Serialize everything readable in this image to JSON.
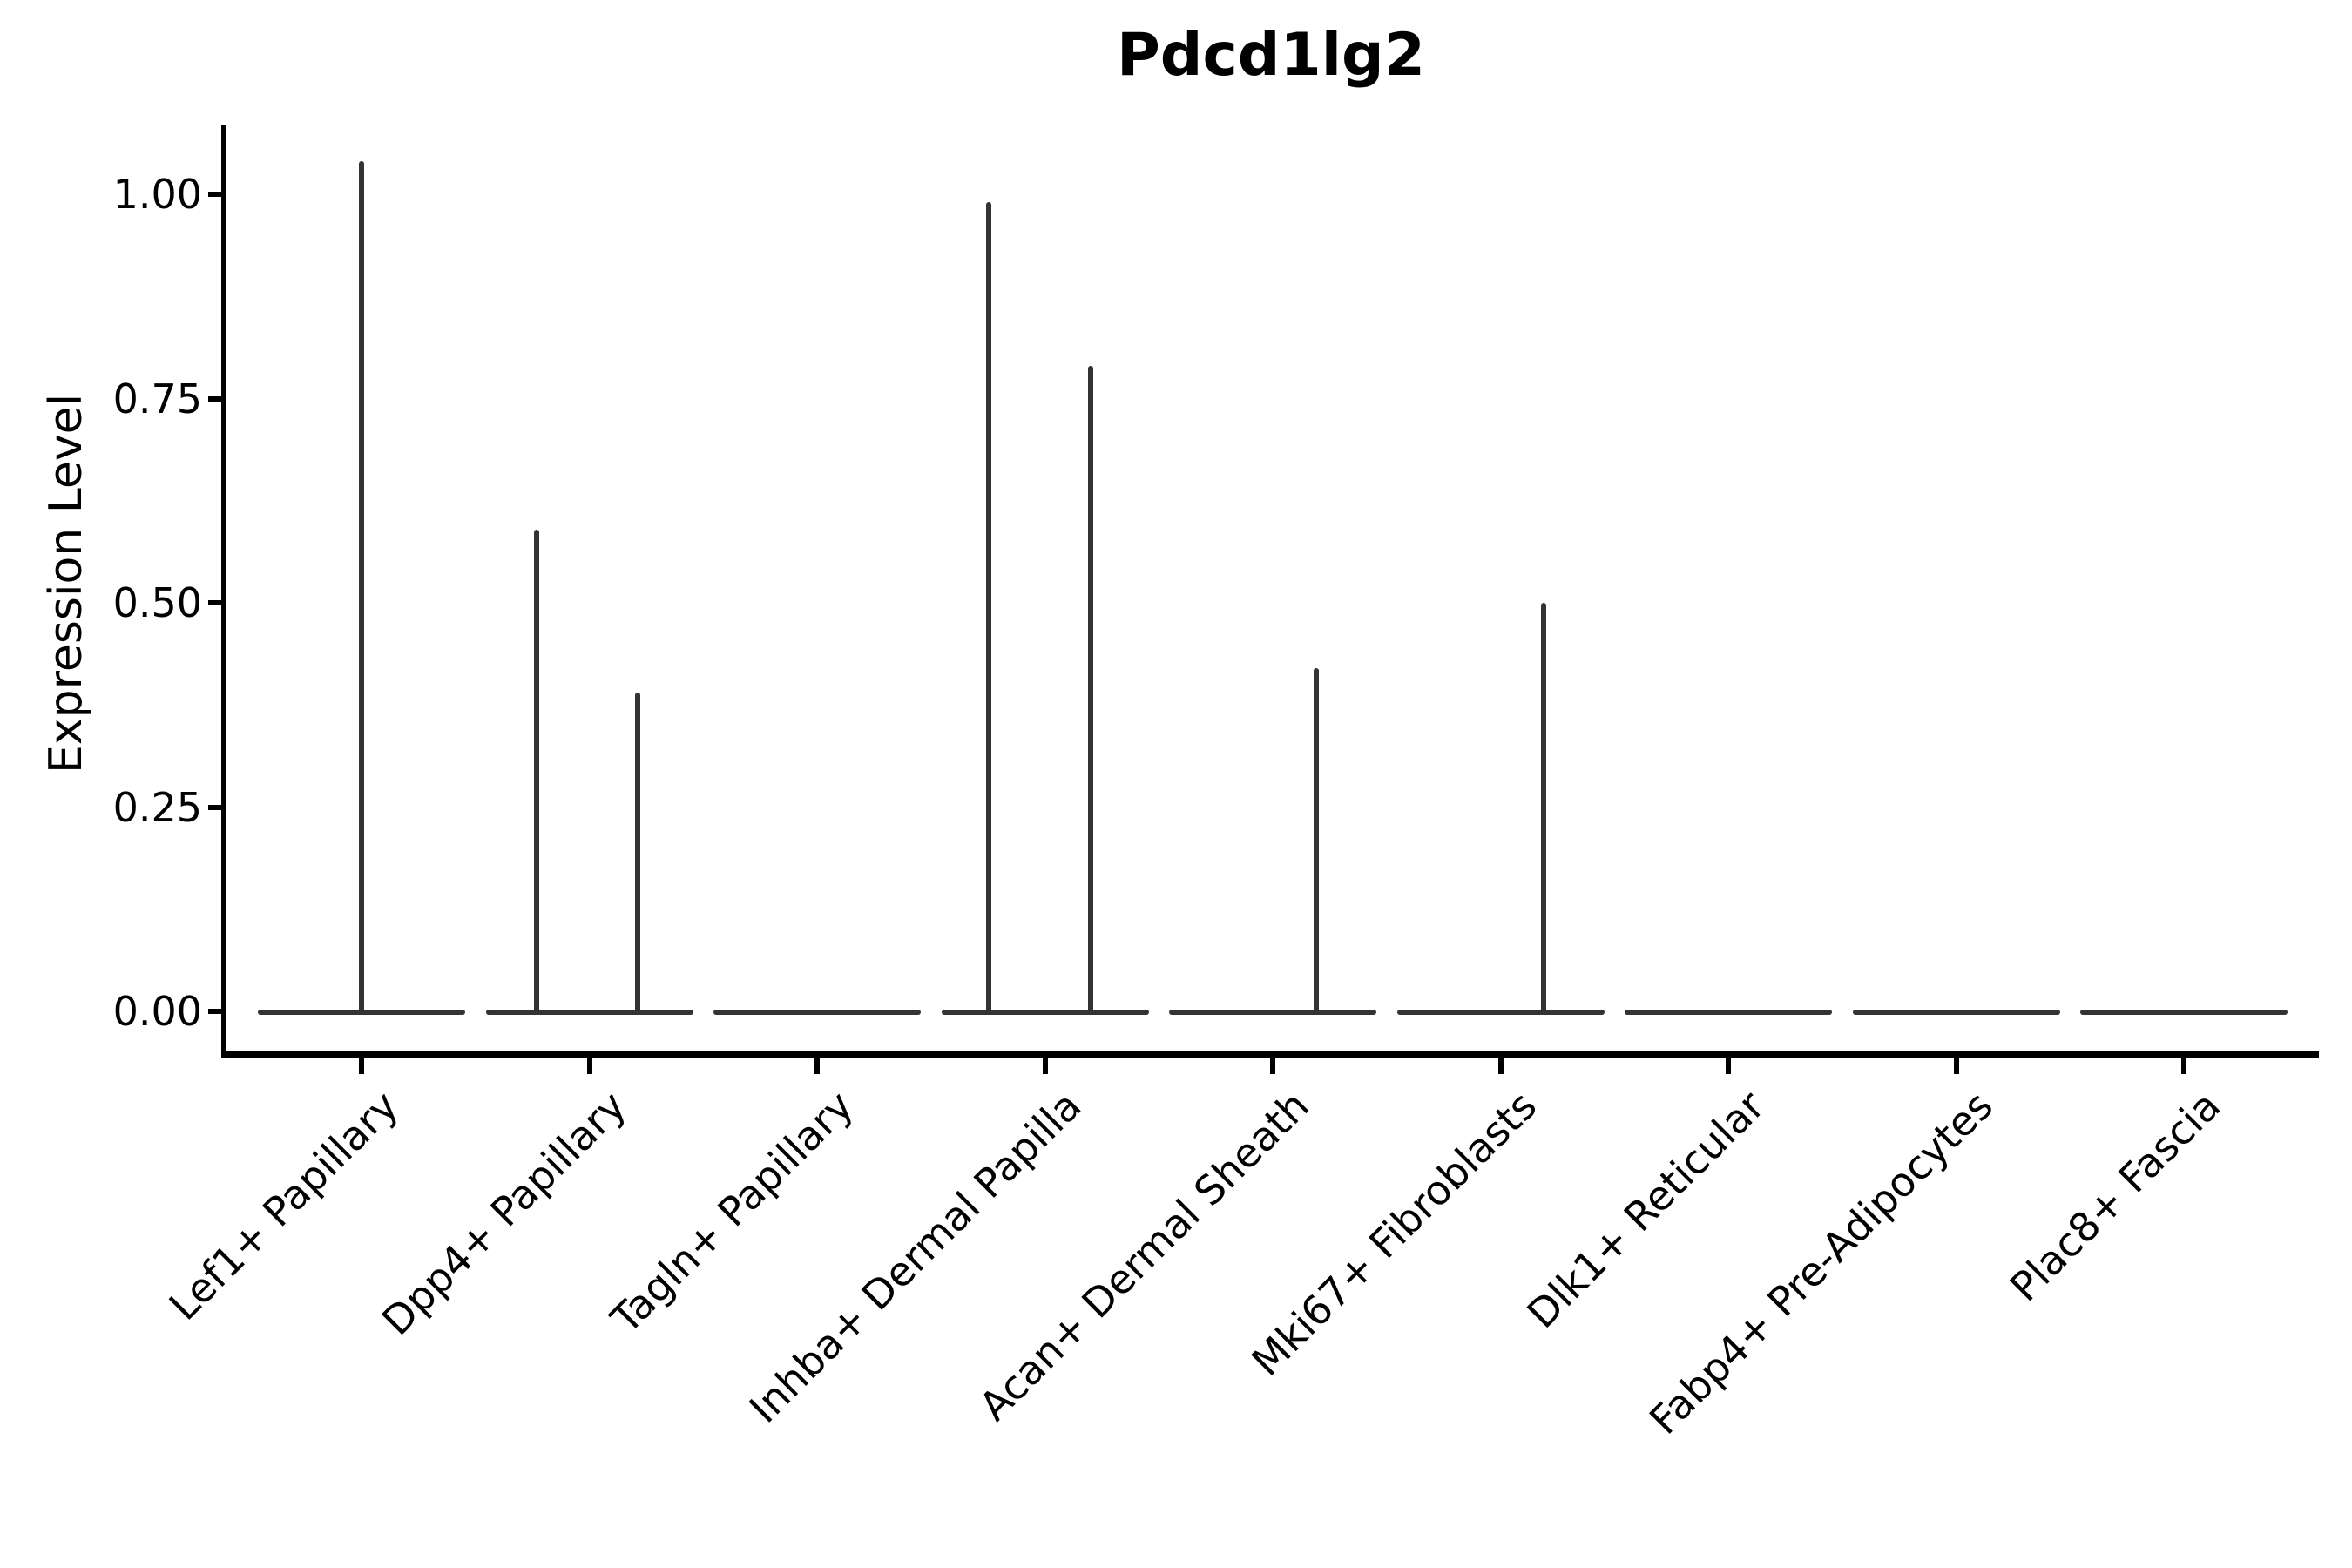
{
  "title": "Pdcd1lg2",
  "chart_data": {
    "type": "violin",
    "title": "Pdcd1lg2",
    "xlabel": "",
    "ylabel": "Expression Level",
    "legend": "none",
    "grid": false,
    "y_ticks": [
      0.0,
      0.25,
      0.5,
      0.75,
      1.0
    ],
    "y_tick_labels": [
      "0.00",
      "0.25",
      "0.50",
      "0.75",
      "1.00"
    ],
    "ylim": [
      -0.05,
      1.1
    ],
    "categories": [
      "Lef1+ Papillary",
      "Dpp4+ Papillary",
      "Tagln+ Papillary",
      "Inhba+ Dermal Papilla",
      "Acan+ Dermal Sheath",
      "Mki67+ Fibroblasts",
      "Dlk1+ Reticular",
      "Fabp4+ Pre-Adipocytes",
      "Plac8+ Fascia"
    ],
    "violins": [
      {
        "category": "Lef1+ Papillary",
        "baseline_value": 0,
        "spikes": [
          {
            "value": 1.04,
            "offset": 0.0
          }
        ]
      },
      {
        "category": "Dpp4+ Papillary",
        "baseline_value": 0,
        "spikes": [
          {
            "value": 0.59,
            "offset": -0.231
          },
          {
            "value": 0.39,
            "offset": 0.212
          }
        ]
      },
      {
        "category": "Tagln+ Papillary",
        "baseline_value": 0,
        "spikes": []
      },
      {
        "category": "Inhba+ Dermal Papilla",
        "baseline_value": 0,
        "spikes": [
          {
            "value": 0.99,
            "offset": -0.247
          },
          {
            "value": 0.79,
            "offset": 0.201
          }
        ]
      },
      {
        "category": "Acan+ Dermal Sheath",
        "baseline_value": 0,
        "spikes": [
          {
            "value": 0.42,
            "offset": 0.191
          }
        ]
      },
      {
        "category": "Mki67+ Fibroblasts",
        "baseline_value": 0,
        "spikes": [
          {
            "value": 0.5,
            "offset": 0.189
          }
        ]
      },
      {
        "category": "Dlk1+ Reticular",
        "baseline_value": 0,
        "spikes": []
      },
      {
        "category": "Fabp4+ Pre-Adipocytes",
        "baseline_value": 0,
        "spikes": []
      },
      {
        "category": "Plac8+ Fascia",
        "baseline_value": 0,
        "spikes": []
      }
    ],
    "colors": {
      "stroke": "#333333",
      "axis": "#000000",
      "text": "#000000",
      "background": "#ffffff"
    }
  }
}
